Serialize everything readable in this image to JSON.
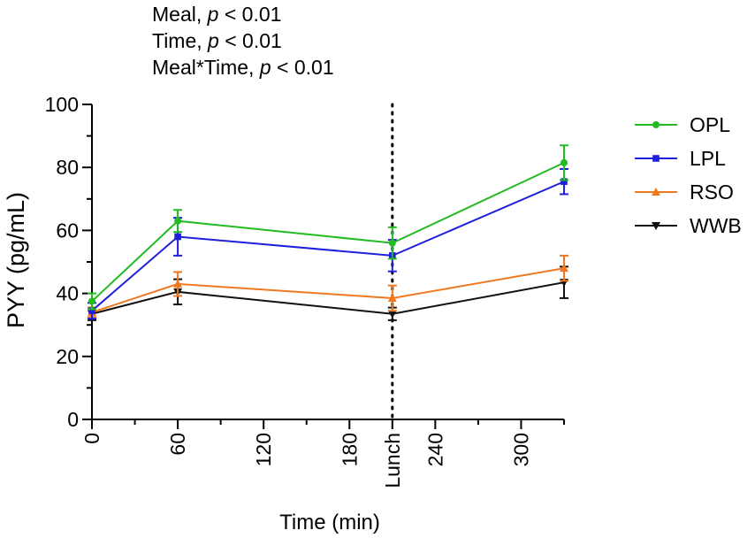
{
  "annotations": {
    "meal": {
      "label": "Meal, ",
      "p": "p",
      "rest": " < 0.01"
    },
    "time": {
      "label": "Time, ",
      "p": "p",
      "rest": " < 0.01"
    },
    "meal_time": {
      "label": "Meal*Time, ",
      "p": "p",
      "rest": " < 0.01"
    }
  },
  "chart_data": {
    "type": "line",
    "title": "",
    "xlabel": "Time (min)",
    "ylabel": "PYY (pg/mL)",
    "xlim": [
      0,
      330
    ],
    "ylim": [
      0,
      100
    ],
    "x_ticks": [
      {
        "value": 0,
        "label": "0"
      },
      {
        "value": 60,
        "label": "60"
      },
      {
        "value": 120,
        "label": "120"
      },
      {
        "value": 180,
        "label": "180"
      },
      {
        "value": 210,
        "label": "Lunch"
      },
      {
        "value": 240,
        "label": "240"
      },
      {
        "value": 300,
        "label": "300"
      }
    ],
    "x_minor_ticks": [
      30,
      90,
      150,
      270,
      330
    ],
    "y_ticks": [
      0,
      20,
      40,
      60,
      80,
      100
    ],
    "y_minor_ticks": [
      10,
      30,
      50,
      70,
      90
    ],
    "vline": {
      "x": 210,
      "style": "dotted"
    },
    "x": [
      0,
      60,
      210,
      330
    ],
    "series": [
      {
        "name": "OPL",
        "color": "#22bb22",
        "marker": "circle",
        "values": [
          37.5,
          63,
          56,
          81.5
        ],
        "errors": [
          2.5,
          3.5,
          5,
          5.5
        ]
      },
      {
        "name": "LPL",
        "color": "#1f1fdd",
        "marker": "square",
        "values": [
          34.5,
          58,
          52,
          75.5
        ],
        "errors": [
          2.5,
          6,
          5,
          4
        ]
      },
      {
        "name": "RSO",
        "color": "#f07820",
        "marker": "triangle-up",
        "values": [
          34,
          43,
          38.5,
          48
        ],
        "errors": [
          1.5,
          3.8,
          4,
          4
        ]
      },
      {
        "name": "WWB",
        "color": "#111111",
        "marker": "triangle-down",
        "values": [
          33.5,
          40.5,
          33.5,
          43.5
        ],
        "errors": [
          2,
          4,
          2,
          5
        ]
      }
    ],
    "legend": {
      "position": "right",
      "entries": [
        "OPL",
        "LPL",
        "RSO",
        "WWB"
      ]
    }
  }
}
